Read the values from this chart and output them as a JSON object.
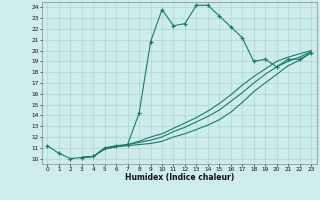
{
  "bg_color": "#ceecea",
  "grid_color": "#a8d8d4",
  "line_color": "#1a7a6e",
  "xlabel": "Humidex (Indice chaleur)",
  "xlim": [
    -0.5,
    23.5
  ],
  "ylim": [
    9.5,
    24.5
  ],
  "yticks": [
    10,
    11,
    12,
    13,
    14,
    15,
    16,
    17,
    18,
    19,
    20,
    21,
    22,
    23,
    24
  ],
  "xticks": [
    0,
    1,
    2,
    3,
    4,
    5,
    6,
    7,
    8,
    9,
    10,
    11,
    12,
    13,
    14,
    15,
    16,
    17,
    18,
    19,
    20,
    21,
    22,
    23
  ],
  "curve1_x": [
    0,
    1,
    2,
    3,
    4,
    5,
    6,
    7,
    8,
    9,
    10,
    11,
    12,
    13,
    14,
    15,
    16,
    17,
    18,
    19,
    20,
    21,
    22,
    23
  ],
  "curve1_y": [
    11.2,
    10.5,
    10.0,
    10.1,
    10.2,
    11.0,
    11.2,
    11.3,
    14.2,
    20.8,
    23.8,
    22.3,
    22.5,
    24.2,
    24.2,
    23.2,
    22.2,
    21.2,
    19.0,
    19.2,
    18.5,
    19.2,
    19.2,
    19.8
  ],
  "line2_x": [
    3,
    4,
    5,
    6,
    7,
    8,
    9,
    10,
    11,
    12,
    13,
    14,
    15,
    16,
    17,
    18,
    19,
    20,
    21,
    22,
    23
  ],
  "line2_y": [
    10.1,
    10.2,
    10.9,
    11.1,
    11.2,
    11.3,
    11.4,
    11.6,
    12.0,
    12.3,
    12.7,
    13.1,
    13.6,
    14.3,
    15.2,
    16.2,
    17.0,
    17.8,
    18.6,
    19.1,
    19.8
  ],
  "line3_x": [
    3,
    4,
    5,
    6,
    7,
    8,
    9,
    10,
    11,
    12,
    13,
    14,
    15,
    16,
    17,
    18,
    19,
    20,
    21,
    22,
    23
  ],
  "line3_y": [
    10.1,
    10.2,
    10.9,
    11.1,
    11.3,
    11.5,
    11.7,
    12.0,
    12.5,
    12.9,
    13.4,
    13.9,
    14.5,
    15.3,
    16.1,
    17.0,
    17.8,
    18.5,
    19.0,
    19.4,
    19.9
  ],
  "line4_x": [
    3,
    4,
    5,
    6,
    7,
    8,
    9,
    10,
    11,
    12,
    13,
    14,
    15,
    16,
    17,
    18,
    19,
    20,
    21,
    22,
    23
  ],
  "line4_y": [
    10.1,
    10.2,
    10.9,
    11.1,
    11.3,
    11.6,
    12.0,
    12.3,
    12.8,
    13.3,
    13.8,
    14.4,
    15.1,
    15.9,
    16.8,
    17.6,
    18.3,
    19.0,
    19.4,
    19.7,
    20.0
  ]
}
